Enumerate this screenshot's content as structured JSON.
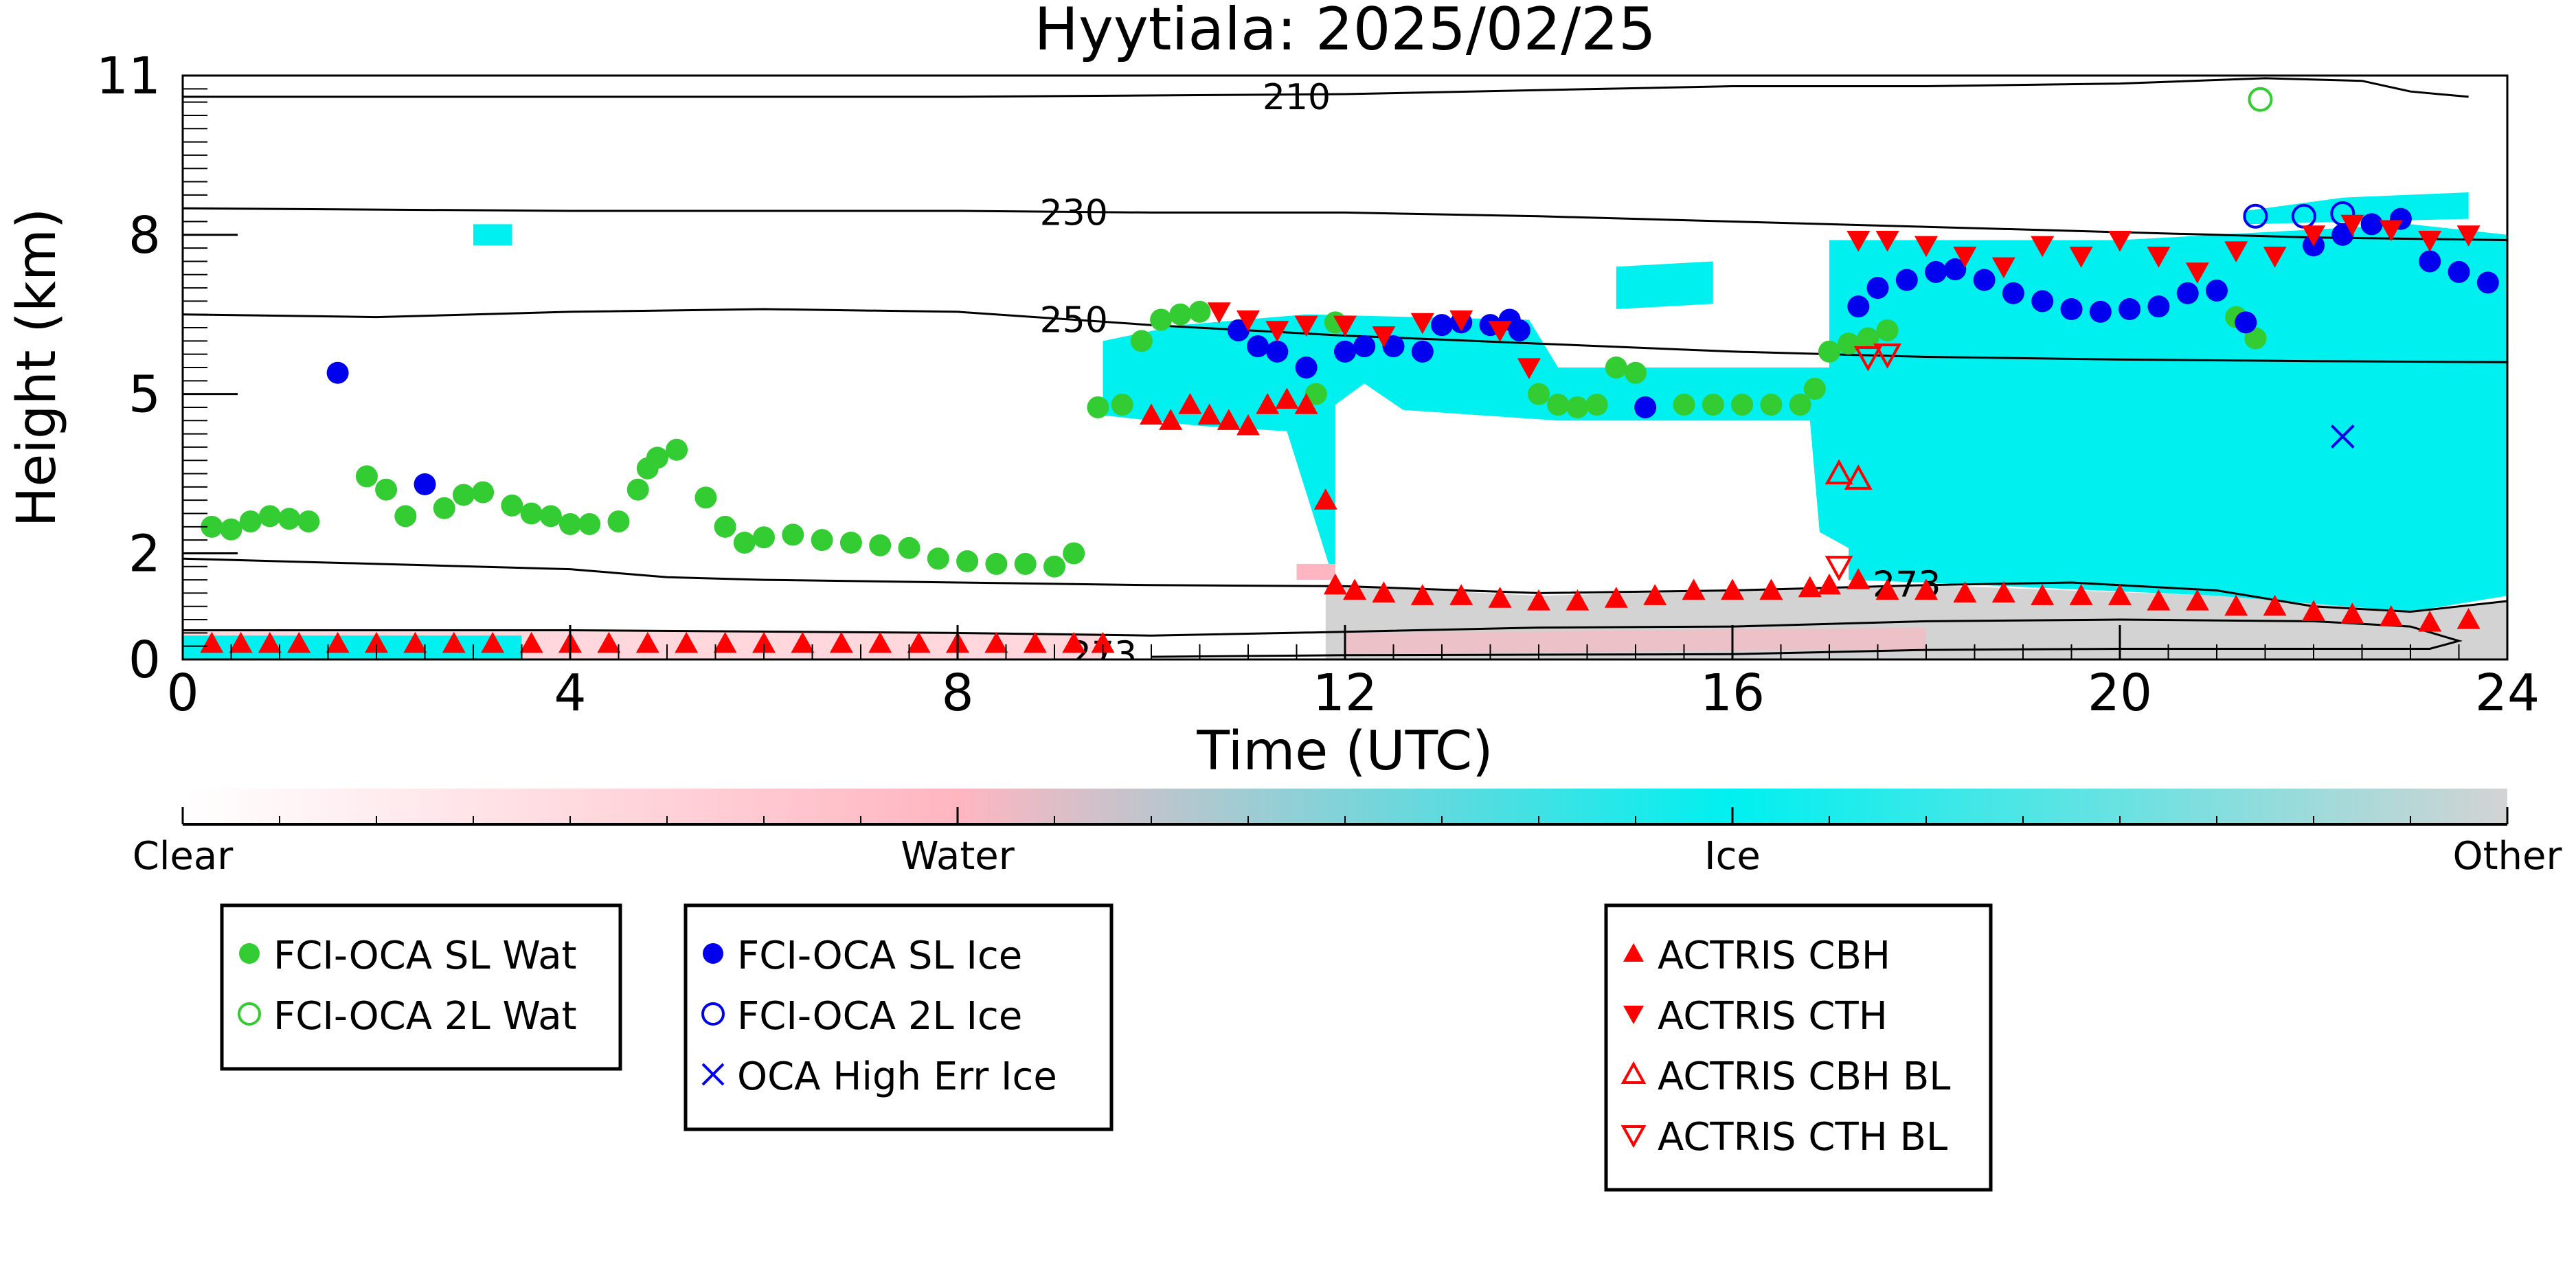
{
  "chart_data": {
    "type": "scatter",
    "title": "Hyytiala: 2025/02/25",
    "xlabel": "Time (UTC)",
    "ylabel": "Height (km)",
    "xlim": [
      0,
      24
    ],
    "ylim": [
      0,
      11
    ],
    "xticks": [
      0,
      4,
      8,
      12,
      16,
      20,
      24
    ],
    "yticks": [
      0,
      2,
      5,
      8,
      11
    ],
    "colorbar": {
      "labels": [
        "Clear",
        "Water",
        "Ice",
        "Other"
      ],
      "colors": [
        "#ffffff",
        "#ffb6c1",
        "#00f0f0",
        "#d3d3d3"
      ]
    },
    "contours": [
      {
        "label": "210",
        "points": [
          [
            0,
            10.6
          ],
          [
            4,
            10.6
          ],
          [
            8,
            10.6
          ],
          [
            12,
            10.65
          ],
          [
            16,
            10.8
          ],
          [
            18,
            10.8
          ],
          [
            20,
            10.85
          ],
          [
            21.5,
            10.95
          ],
          [
            22.5,
            10.9
          ],
          [
            23,
            10.7
          ],
          [
            23.6,
            10.6
          ]
        ]
      },
      {
        "label": "230",
        "points": [
          [
            0,
            8.5
          ],
          [
            4,
            8.45
          ],
          [
            8,
            8.45
          ],
          [
            10,
            8.42
          ],
          [
            12,
            8.42
          ],
          [
            14,
            8.35
          ],
          [
            16,
            8.25
          ],
          [
            18,
            8.15
          ],
          [
            20,
            8.05
          ],
          [
            22,
            7.95
          ],
          [
            24,
            7.9
          ]
        ]
      },
      {
        "label": "250",
        "points": [
          [
            0,
            6.5
          ],
          [
            2,
            6.45
          ],
          [
            4,
            6.55
          ],
          [
            6,
            6.6
          ],
          [
            8,
            6.55
          ],
          [
            10,
            6.3
          ],
          [
            12,
            6.1
          ],
          [
            14,
            5.95
          ],
          [
            16,
            5.8
          ],
          [
            18,
            5.7
          ],
          [
            20,
            5.65
          ],
          [
            22,
            5.62
          ],
          [
            24,
            5.6
          ]
        ]
      },
      {
        "label": "273",
        "points": [
          [
            0,
            1.9
          ],
          [
            2,
            1.8
          ],
          [
            4,
            1.7
          ],
          [
            5,
            1.55
          ],
          [
            6,
            1.5
          ],
          [
            8,
            1.45
          ],
          [
            10,
            1.4
          ],
          [
            12,
            1.38
          ],
          [
            14,
            1.25
          ],
          [
            16,
            1.3
          ],
          [
            18,
            1.4
          ],
          [
            19.5,
            1.45
          ],
          [
            21,
            1.3
          ],
          [
            22,
            1.0
          ],
          [
            23,
            0.9
          ],
          [
            24,
            1.1
          ]
        ]
      },
      {
        "label": "273",
        "points": [
          [
            0,
            0.55
          ],
          [
            4,
            0.55
          ],
          [
            8,
            0.5
          ],
          [
            10,
            0.45
          ],
          [
            12,
            0.52
          ],
          [
            14,
            0.6
          ],
          [
            16,
            0.62
          ],
          [
            18,
            0.72
          ],
          [
            20,
            0.75
          ],
          [
            22,
            0.72
          ],
          [
            23,
            0.62
          ],
          [
            23.5,
            0.35
          ],
          [
            23.2,
            0.2
          ],
          [
            20,
            0.2
          ],
          [
            18,
            0.18
          ],
          [
            16,
            0.1
          ],
          [
            12,
            0.08
          ],
          [
            10,
            0.05
          ]
        ]
      }
    ],
    "series": [
      {
        "name": "FCI-OCA SL Wat",
        "color": "#33cc33",
        "marker": "filled-circle",
        "x": [
          0.3,
          0.5,
          0.7,
          0.9,
          1.1,
          1.3,
          1.9,
          2.1,
          2.3,
          2.7,
          2.9,
          3.1,
          3.4,
          3.6,
          3.8,
          4.0,
          4.2,
          4.5,
          4.7,
          4.8,
          4.9,
          5.1,
          5.4,
          5.6,
          5.8,
          6.0,
          6.3,
          6.6,
          6.9,
          7.2,
          7.5,
          7.8,
          8.1,
          8.4,
          8.7,
          9.0,
          9.2,
          9.45,
          9.7,
          9.9,
          10.1,
          10.3,
          10.5,
          11.7,
          11.9,
          14.0,
          14.2,
          14.4,
          14.6,
          14.8,
          15.0,
          15.5,
          15.8,
          16.1,
          16.4,
          16.7,
          16.85,
          17.0,
          17.2,
          17.4,
          17.6,
          21.2,
          21.4
        ],
        "y": [
          2.5,
          2.45,
          2.6,
          2.7,
          2.65,
          2.6,
          3.45,
          3.2,
          2.7,
          2.85,
          3.1,
          3.15,
          2.9,
          2.75,
          2.7,
          2.55,
          2.55,
          2.6,
          3.2,
          3.6,
          3.8,
          3.95,
          3.05,
          2.5,
          2.2,
          2.3,
          2.35,
          2.25,
          2.2,
          2.15,
          2.1,
          1.9,
          1.85,
          1.8,
          1.8,
          1.75,
          2.0,
          4.75,
          4.8,
          6.0,
          6.4,
          6.5,
          6.55,
          5.0,
          6.35,
          5.0,
          4.8,
          4.75,
          4.8,
          5.5,
          5.4,
          4.8,
          4.8,
          4.8,
          4.8,
          4.8,
          5.1,
          5.8,
          5.95,
          6.05,
          6.2,
          6.45,
          6.05
        ]
      },
      {
        "name": "FCI-OCA 2L Wat",
        "color": "#33cc33",
        "marker": "open-circle",
        "x": [
          21.45
        ],
        "y": [
          10.55
        ]
      },
      {
        "name": "FCI-OCA SL Ice",
        "color": "#0000ee",
        "marker": "filled-circle",
        "x": [
          1.6,
          2.5,
          10.9,
          11.1,
          11.3,
          11.6,
          12.0,
          12.2,
          12.5,
          12.8,
          13.0,
          13.2,
          13.5,
          13.7,
          13.8,
          15.1,
          17.3,
          17.5,
          17.8,
          18.1,
          18.3,
          18.6,
          18.9,
          19.2,
          19.5,
          19.8,
          20.1,
          20.4,
          20.7,
          21.0,
          21.3,
          22.0,
          22.3,
          22.6,
          22.9,
          23.2,
          23.5,
          23.8
        ],
        "y": [
          5.4,
          3.3,
          6.2,
          5.9,
          5.8,
          5.5,
          5.8,
          5.9,
          5.9,
          5.8,
          6.3,
          6.35,
          6.3,
          6.4,
          6.2,
          4.75,
          6.65,
          7.0,
          7.15,
          7.3,
          7.35,
          7.15,
          6.9,
          6.75,
          6.6,
          6.55,
          6.6,
          6.65,
          6.9,
          6.95,
          6.35,
          7.8,
          8.0,
          8.2,
          8.3,
          7.5,
          7.3,
          7.1
        ]
      },
      {
        "name": "FCI-OCA 2L Ice",
        "color": "#0000ee",
        "marker": "open-circle",
        "x": [
          21.4,
          21.9,
          22.3
        ],
        "y": [
          8.35,
          8.35,
          8.4
        ]
      },
      {
        "name": "OCA High Err Ice",
        "color": "#0000ee",
        "marker": "x",
        "x": [
          22.3
        ],
        "y": [
          4.2
        ]
      },
      {
        "name": "ACTRIS CBH",
        "color": "#ff0000",
        "marker": "triangle-up",
        "x": [
          0.3,
          0.6,
          0.9,
          1.2,
          1.6,
          2.0,
          2.4,
          2.8,
          3.2,
          3.6,
          4.0,
          4.4,
          4.8,
          5.2,
          5.6,
          6.0,
          6.4,
          6.8,
          7.2,
          7.6,
          8.0,
          8.4,
          8.8,
          9.2,
          9.5,
          10.0,
          10.2,
          10.4,
          10.6,
          10.8,
          11.0,
          11.2,
          11.4,
          11.6,
          11.8,
          11.9,
          12.1,
          12.4,
          12.8,
          13.2,
          13.6,
          14.0,
          14.4,
          14.8,
          15.2,
          15.6,
          16.0,
          16.4,
          16.8,
          17.0,
          17.3,
          17.6,
          18.0,
          18.4,
          18.8,
          19.2,
          19.6,
          20.0,
          20.4,
          20.8,
          21.2,
          21.6,
          22.0,
          22.4,
          22.8,
          23.2,
          23.6
        ],
        "y": [
          0.3,
          0.3,
          0.3,
          0.3,
          0.3,
          0.3,
          0.3,
          0.3,
          0.3,
          0.3,
          0.3,
          0.3,
          0.3,
          0.3,
          0.3,
          0.3,
          0.3,
          0.3,
          0.3,
          0.3,
          0.3,
          0.3,
          0.3,
          0.3,
          0.3,
          4.6,
          4.5,
          4.8,
          4.6,
          4.5,
          4.4,
          4.8,
          4.9,
          4.8,
          3.0,
          1.4,
          1.3,
          1.25,
          1.2,
          1.2,
          1.15,
          1.1,
          1.1,
          1.15,
          1.2,
          1.3,
          1.3,
          1.3,
          1.35,
          1.4,
          1.5,
          1.3,
          1.3,
          1.25,
          1.25,
          1.2,
          1.2,
          1.2,
          1.1,
          1.1,
          1.0,
          1.0,
          0.9,
          0.85,
          0.8,
          0.7,
          0.75
        ]
      },
      {
        "name": "ACTRIS CTH",
        "color": "#ff0000",
        "marker": "triangle-down",
        "x": [
          10.7,
          11.0,
          11.3,
          11.6,
          12.0,
          12.4,
          12.8,
          13.2,
          13.6,
          13.9,
          17.3,
          17.6,
          18.0,
          18.4,
          18.8,
          19.2,
          19.6,
          20.0,
          20.4,
          20.8,
          21.2,
          21.6,
          22.0,
          22.4,
          22.8,
          23.2,
          23.6
        ],
        "y": [
          6.55,
          6.4,
          6.2,
          6.3,
          6.3,
          6.1,
          6.35,
          6.4,
          6.2,
          5.5,
          7.9,
          7.9,
          7.8,
          7.6,
          7.4,
          7.8,
          7.6,
          7.9,
          7.6,
          7.3,
          7.7,
          7.6,
          8.0,
          8.2,
          8.1,
          7.9,
          8.0
        ]
      },
      {
        "name": "ACTRIS CBH BL",
        "color": "#ff0000",
        "marker": "open-triangle-up",
        "x": [
          17.1,
          17.3
        ],
        "y": [
          3.5,
          3.4
        ]
      },
      {
        "name": "ACTRIS CTH BL",
        "color": "#ff0000",
        "marker": "open-triangle-down",
        "x": [
          17.1,
          17.4,
          17.6
        ],
        "y": [
          1.75,
          5.7,
          5.75
        ]
      }
    ],
    "legend_groups": [
      [
        "FCI-OCA SL Wat",
        "FCI-OCA 2L Wat"
      ],
      [
        "FCI-OCA SL Ice",
        "FCI-OCA 2L Ice",
        "OCA High Err Ice"
      ],
      [
        "ACTRIS CBH",
        "ACTRIS CTH",
        "ACTRIS CBH BL",
        "ACTRIS CTH BL"
      ]
    ]
  }
}
